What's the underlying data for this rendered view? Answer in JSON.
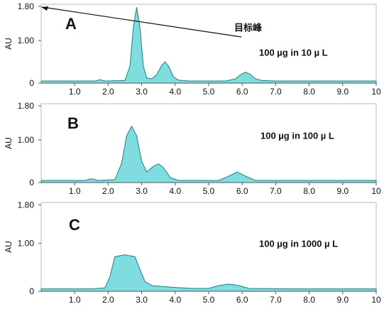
{
  "chart_data": [
    {
      "type": "area",
      "label": "A",
      "annotation": "目标峰",
      "note": "100 µg in 10 µ L",
      "ylabel": "AU",
      "color": "#7fdde0",
      "x": [
        0,
        1.0,
        1.6,
        1.75,
        1.9,
        2.5,
        2.65,
        2.75,
        2.85,
        2.95,
        3.05,
        3.15,
        3.3,
        3.45,
        3.6,
        3.7,
        3.8,
        3.95,
        4.1,
        4.4,
        5.5,
        5.8,
        5.95,
        6.1,
        6.25,
        6.4,
        6.6,
        7,
        10
      ],
      "values": [
        0.05,
        0.05,
        0.05,
        0.08,
        0.05,
        0.06,
        0.4,
        1.3,
        1.78,
        1.3,
        0.4,
        0.12,
        0.1,
        0.2,
        0.42,
        0.5,
        0.4,
        0.15,
        0.07,
        0.05,
        0.05,
        0.1,
        0.2,
        0.26,
        0.2,
        0.1,
        0.06,
        0.05,
        0.05
      ],
      "xlim": [
        0,
        10
      ],
      "ylim": [
        0,
        1.85
      ],
      "xticks": [
        {
          "value": 1,
          "label": "1.0"
        },
        {
          "value": 2,
          "label": "2.0"
        },
        {
          "value": 3,
          "label": "3.0"
        },
        {
          "value": 4,
          "label": "4.0"
        },
        {
          "value": 5,
          "label": "5.0"
        },
        {
          "value": 6,
          "label": "6.0"
        },
        {
          "value": 7,
          "label": "7.0"
        },
        {
          "value": 8,
          "label": "8.0"
        },
        {
          "value": 9,
          "label": "9.0"
        },
        10
      ],
      "yticks": [
        0,
        {
          "value": 1,
          "label": "1.00"
        },
        {
          "value": 1.8,
          "label": "1.80"
        }
      ]
    },
    {
      "type": "area",
      "label": "B",
      "note": "100 µg in 100 µ L",
      "ylabel": "AU",
      "color": "#7fdde0",
      "x": [
        0,
        1.3,
        1.5,
        1.7,
        2.2,
        2.4,
        2.55,
        2.7,
        2.85,
        3.0,
        3.15,
        3.35,
        3.5,
        3.65,
        3.85,
        4.1,
        5.3,
        5.6,
        5.85,
        6.1,
        6.4,
        10
      ],
      "values": [
        0.05,
        0.05,
        0.09,
        0.05,
        0.07,
        0.45,
        1.1,
        1.32,
        1.1,
        0.5,
        0.25,
        0.38,
        0.44,
        0.35,
        0.12,
        0.05,
        0.05,
        0.15,
        0.25,
        0.15,
        0.05,
        0.05
      ],
      "xlim": [
        0,
        10
      ],
      "ylim": [
        0,
        1.85
      ],
      "xticks": [
        {
          "value": 1,
          "label": "1.0"
        },
        {
          "value": 2,
          "label": "2.0"
        },
        {
          "value": 3,
          "label": "3.0"
        },
        {
          "value": 4,
          "label": "4.0"
        },
        {
          "value": 5,
          "label": "5.0"
        },
        {
          "value": 6,
          "label": "6.0"
        },
        {
          "value": 7,
          "label": "7.0"
        },
        {
          "value": 8,
          "label": "8.0"
        },
        {
          "value": 9,
          "label": "9.0"
        },
        10
      ],
      "yticks": [
        0,
        {
          "value": 1,
          "label": "1.00"
        },
        {
          "value": 1.8,
          "label": "1.80"
        }
      ]
    },
    {
      "type": "area",
      "label": "C",
      "note": "100 µg in 1000 µ L",
      "ylabel": "AU",
      "color": "#7fdde0",
      "x": [
        0,
        1.5,
        1.9,
        2.05,
        2.2,
        2.5,
        2.8,
        2.95,
        3.1,
        3.3,
        3.6,
        4.0,
        4.5,
        5.0,
        5.3,
        5.6,
        5.9,
        6.2,
        7.5,
        10
      ],
      "values": [
        0.05,
        0.05,
        0.07,
        0.3,
        0.72,
        0.76,
        0.72,
        0.45,
        0.2,
        0.12,
        0.1,
        0.08,
        0.06,
        0.06,
        0.12,
        0.15,
        0.12,
        0.06,
        0.05,
        0.05
      ],
      "xlim": [
        0,
        10
      ],
      "ylim": [
        0,
        1.85
      ],
      "xticks": [
        {
          "value": 1,
          "label": "1.0"
        },
        {
          "value": 2,
          "label": "2.0"
        },
        {
          "value": 3,
          "label": "3.0"
        },
        {
          "value": 4,
          "label": "4.0"
        },
        {
          "value": 5,
          "label": "5.0"
        },
        {
          "value": 6,
          "label": "6.0"
        },
        {
          "value": 7,
          "label": "7.0"
        },
        {
          "value": 8,
          "label": "8.0"
        },
        {
          "value": 9,
          "label": "9.0"
        },
        10
      ],
      "yticks": [
        0,
        {
          "value": 1,
          "label": "1.00"
        },
        {
          "value": 1.8,
          "label": "1.80"
        }
      ]
    }
  ]
}
